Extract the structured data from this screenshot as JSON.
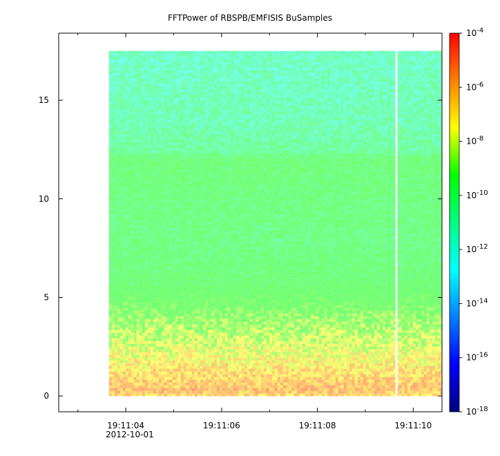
{
  "chart_data": {
    "type": "heatmap",
    "title": "FFTPower of RBSPB/EMFISIS  BuSamples",
    "x_axis": {
      "type": "time",
      "tick_labels": [
        "19:11:04",
        "19:11:06",
        "19:11:08",
        "19:11:10"
      ],
      "tick_seconds": [
        4,
        6,
        8,
        10
      ],
      "minor_tick_seconds": [
        3,
        5,
        7,
        9
      ],
      "range_seconds": [
        2.6,
        10.6
      ],
      "date_label": "2012-10-01"
    },
    "y_axis": {
      "tick_labels": [
        "0",
        "5",
        "10",
        "15"
      ],
      "ticks": [
        0,
        5,
        10,
        15
      ],
      "range": [
        -0.8,
        18.4
      ]
    },
    "colorbar": {
      "scale": "log",
      "range_exponent": [
        -18,
        -4
      ],
      "tick_exponents": [
        -18,
        -16,
        -14,
        -12,
        -10,
        -8,
        -6,
        -4
      ],
      "tick_labels": [
        "10",
        "10",
        "10",
        "10",
        "10",
        "10",
        "10",
        "10"
      ],
      "tick_label_exponents": [
        "-18",
        "-16",
        "-14",
        "-12",
        "-10",
        "-8",
        "-6",
        "-4"
      ]
    },
    "data_extent": {
      "x_start_seconds": 3.65,
      "x_end_seconds": 10.6,
      "y_min": 0,
      "y_max": 17.5,
      "gap_x_seconds": 9.65
    },
    "power_profile": [
      {
        "y": 0.0,
        "log10_power": -7.0
      },
      {
        "y": 0.3,
        "log10_power": -6.4
      },
      {
        "y": 1.0,
        "log10_power": -6.9
      },
      {
        "y": 2.0,
        "log10_power": -7.5
      },
      {
        "y": 3.0,
        "log10_power": -8.0
      },
      {
        "y": 4.0,
        "log10_power": -8.5
      },
      {
        "y": 5.0,
        "log10_power": -9.3
      },
      {
        "y": 6.0,
        "log10_power": -10.0
      },
      {
        "y": 8.0,
        "log10_power": -10.4
      },
      {
        "y": 10.0,
        "log10_power": -10.2
      },
      {
        "y": 12.0,
        "log10_power": -10.0
      },
      {
        "y": 12.4,
        "log10_power": -11.0
      },
      {
        "y": 14.0,
        "log10_power": -11.5
      },
      {
        "y": 17.5,
        "log10_power": -11.8
      }
    ]
  }
}
